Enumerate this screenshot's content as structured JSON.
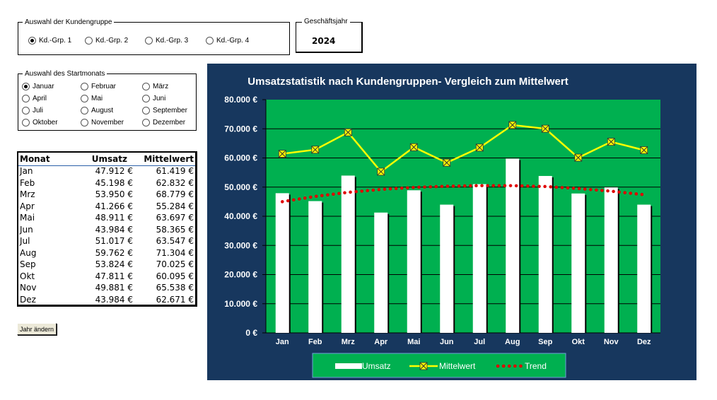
{
  "kundengruppe": {
    "legend": "Auswahl der Kundengruppe",
    "options": [
      "Kd.-Grp. 1",
      "Kd.-Grp. 2",
      "Kd.-Grp. 3",
      "Kd.-Grp. 4"
    ],
    "selected": 0
  },
  "geschaeftsjahr": {
    "label": "Geschäftsjahr",
    "value": "2024"
  },
  "startmonat": {
    "legend": "Auswahl des Startmonats",
    "options": [
      "Januar",
      "Februar",
      "März",
      "April",
      "Mai",
      "Juni",
      "Juli",
      "August",
      "September",
      "Oktober",
      "November",
      "Dezember"
    ],
    "selected": 0
  },
  "table": {
    "headers": [
      "Monat",
      "Umsatz",
      "Mittelwert"
    ],
    "rows": [
      [
        "Jan",
        "47.912 €",
        "61.419 €"
      ],
      [
        "Feb",
        "45.198 €",
        "62.832 €"
      ],
      [
        "Mrz",
        "53.950 €",
        "68.779 €"
      ],
      [
        "Apr",
        "41.266 €",
        "55.284 €"
      ],
      [
        "Mai",
        "48.911 €",
        "63.697 €"
      ],
      [
        "Jun",
        "43.984 €",
        "58.365 €"
      ],
      [
        "Jul",
        "51.017 €",
        "63.547 €"
      ],
      [
        "Aug",
        "59.762 €",
        "71.304 €"
      ],
      [
        "Sep",
        "53.824 €",
        "70.025 €"
      ],
      [
        "Okt",
        "47.811 €",
        "60.095 €"
      ],
      [
        "Nov",
        "49.881 €",
        "65.538 €"
      ],
      [
        "Dez",
        "43.984 €",
        "62.671 €"
      ]
    ]
  },
  "buttons": {
    "jahr_aendern": "Jahr ändern"
  },
  "colors": {
    "outer_bg": "#17375e",
    "plot_bg": "#00b050",
    "bar": "#ffffff",
    "line": "#ffff00",
    "trend": "#e00000"
  },
  "chart_data": {
    "type": "bar",
    "title": "Umsatzstatistik nach Kundengruppen- Vergleich zum Mittelwert",
    "categories": [
      "Jan",
      "Feb",
      "Mrz",
      "Apr",
      "Mai",
      "Jun",
      "Jul",
      "Aug",
      "Sep",
      "Okt",
      "Nov",
      "Dez"
    ],
    "series": [
      {
        "name": "Umsatz",
        "type": "bar",
        "values": [
          47912,
          45198,
          53950,
          41266,
          48911,
          43984,
          51017,
          59762,
          53824,
          47811,
          49881,
          43984
        ]
      },
      {
        "name": "Mittelwert",
        "type": "line",
        "values": [
          61419,
          62832,
          68779,
          55284,
          63697,
          58365,
          63547,
          71304,
          70025,
          60095,
          65538,
          62671
        ]
      },
      {
        "name": "Trend",
        "type": "trend",
        "values": [
          45000,
          46800,
          48200,
          49200,
          49900,
          50300,
          50500,
          50500,
          50200,
          49500,
          48600,
          47400
        ]
      }
    ],
    "y_ticks": [
      "0 €",
      "10.000 €",
      "20.000 €",
      "30.000 €",
      "40.000 €",
      "50.000 €",
      "60.000 €",
      "70.000 €",
      "80.000 €"
    ],
    "ylim": [
      0,
      80000
    ],
    "grid": true,
    "legend_position": "bottom"
  }
}
